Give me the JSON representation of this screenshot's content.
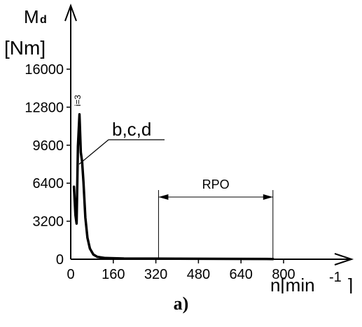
{
  "chart_data": {
    "type": "line",
    "ylabel_symbol": "M",
    "ylabel_subscript": "d",
    "ylabel_unit": "[Nm]",
    "xlabel_prefix": "n[min",
    "xlabel_exponent": "-1",
    "xlabel_suffix": "]",
    "x_ticks": [
      "0",
      "160",
      "320",
      "480",
      "640",
      "800"
    ],
    "y_ticks": [
      "0",
      "3200",
      "6400",
      "9600",
      "12800",
      "16000"
    ],
    "xlim": [
      0,
      900
    ],
    "ylim": [
      0,
      16000
    ],
    "grid": false,
    "series": [
      {
        "x": [
          12,
          18,
          22,
          27,
          33,
          38,
          43,
          48,
          55,
          63,
          72,
          85,
          100,
          130,
          200,
          400,
          600,
          760
        ],
        "y": [
          6100,
          3700,
          3000,
          9500,
          12200,
          9000,
          8200,
          6500,
          3500,
          1800,
          900,
          400,
          200,
          100,
          60,
          40,
          30,
          20
        ]
      }
    ],
    "annotations": {
      "curve_label": "b,c,d",
      "peak_label": "i=3",
      "range_label": "RPO",
      "range": [
        330,
        760
      ]
    }
  },
  "caption": "a)"
}
